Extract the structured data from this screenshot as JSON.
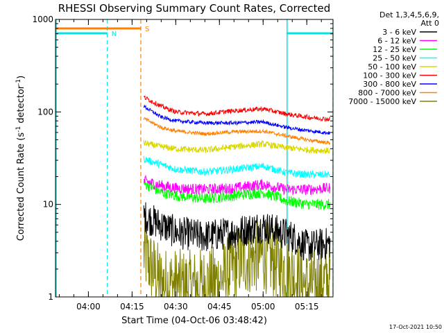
{
  "chart_data": {
    "type": "line",
    "title": "RHESSI Observing Summary Count Rates, Corrected",
    "xlabel": "Start Time (04-Oct-06 03:48:42)",
    "ylabel_main": "Corrected Count Rate (s",
    "ylabel_sup1": "-1",
    "ylabel_mid": " detector",
    "ylabel_sup2": "-1",
    "ylabel_end": ")",
    "yscale": "log",
    "ylim": [
      1,
      1000
    ],
    "xlim": [
      "03:48:42",
      "05:24:00"
    ],
    "x_ticks": [
      "04:00",
      "04:15",
      "04:30",
      "04:45",
      "05:00",
      "05:15"
    ],
    "y_ticks": [
      "1",
      "10",
      "100",
      "1000"
    ],
    "legend_header": [
      "Det 1,3,4,5,6,9,",
      "Att 0"
    ],
    "legend_position": "right",
    "timestamp": "17-Oct-2021 10:50",
    "flags": [
      {
        "label": "N",
        "color": "#00e5e5",
        "intervals": [
          [
            "03:48:42",
            "04:06:30"
          ],
          [
            "05:08:00",
            "05:24:00"
          ]
        ]
      },
      {
        "label": "S",
        "color": "#ff8000",
        "intervals": [
          [
            "03:48:42",
            "04:18:00"
          ]
        ]
      }
    ],
    "event_lines": [
      {
        "color": "#00e5e5",
        "times": [
          "04:06:30",
          "05:24:00"
        ]
      },
      {
        "color": "#ff8000",
        "times": [
          "04:18:00"
        ]
      }
    ],
    "solid_markers": [
      {
        "color": "#00e5e5",
        "times": [
          "03:48:42",
          "05:08:00"
        ]
      }
    ],
    "series": [
      {
        "name": "3 - 6 keV",
        "color": "#000000",
        "noise": 0.18,
        "points": [
          [
            "04:19:00",
            7.5
          ],
          [
            "04:25:00",
            6.0
          ],
          [
            "04:30:00",
            5.0
          ],
          [
            "04:40:00",
            4.5
          ],
          [
            "04:50:00",
            5.0
          ],
          [
            "05:00:00",
            5.8
          ],
          [
            "05:10:00",
            4.5
          ],
          [
            "05:15:00",
            3.5
          ],
          [
            "05:23:00",
            3.8
          ]
        ]
      },
      {
        "name": "6 - 12 keV",
        "color": "#ff00ff",
        "noise": 0.06,
        "points": [
          [
            "04:19:00",
            18
          ],
          [
            "04:25:00",
            16
          ],
          [
            "04:30:00",
            15
          ],
          [
            "04:40:00",
            14.5
          ],
          [
            "04:50:00",
            15
          ],
          [
            "05:00:00",
            16.5
          ],
          [
            "05:08:00",
            14.5
          ],
          [
            "05:15:00",
            14.5
          ],
          [
            "05:23:00",
            15
          ]
        ]
      },
      {
        "name": "12 - 25 keV",
        "color": "#00ff00",
        "noise": 0.06,
        "points": [
          [
            "04:19:00",
            17
          ],
          [
            "04:25:00",
            13.5
          ],
          [
            "04:30:00",
            12.5
          ],
          [
            "04:40:00",
            11.5
          ],
          [
            "04:50:00",
            12.5
          ],
          [
            "05:00:00",
            13.5
          ],
          [
            "05:08:00",
            11
          ],
          [
            "05:15:00",
            10
          ],
          [
            "05:23:00",
            10
          ]
        ]
      },
      {
        "name": "25 - 50 keV",
        "color": "#00ffff",
        "noise": 0.04,
        "points": [
          [
            "04:19:00",
            31
          ],
          [
            "04:25:00",
            27
          ],
          [
            "04:30:00",
            24
          ],
          [
            "04:40:00",
            22.5
          ],
          [
            "04:50:00",
            24
          ],
          [
            "05:00:00",
            26
          ],
          [
            "05:08:00",
            22
          ],
          [
            "05:15:00",
            21
          ],
          [
            "05:23:00",
            21
          ]
        ]
      },
      {
        "name": "50 - 100 keV",
        "color": "#d8d800",
        "noise": 0.035,
        "points": [
          [
            "04:19:00",
            46
          ],
          [
            "04:25:00",
            42
          ],
          [
            "04:30:00",
            40
          ],
          [
            "04:40:00",
            38.5
          ],
          [
            "04:50:00",
            42
          ],
          [
            "05:00:00",
            45
          ],
          [
            "05:08:00",
            41
          ],
          [
            "05:15:00",
            39
          ],
          [
            "05:23:00",
            38
          ]
        ]
      },
      {
        "name": "100 - 300 keV",
        "color": "#ff0000",
        "noise": 0.025,
        "points": [
          [
            "04:19:00",
            145
          ],
          [
            "04:25:00",
            115
          ],
          [
            "04:30:00",
            100
          ],
          [
            "04:40:00",
            95
          ],
          [
            "04:50:00",
            103
          ],
          [
            "05:00:00",
            108
          ],
          [
            "05:08:00",
            95
          ],
          [
            "05:15:00",
            88
          ],
          [
            "05:23:00",
            83
          ]
        ]
      },
      {
        "name": "300 - 800 keV",
        "color": "#0000ff",
        "noise": 0.02,
        "points": [
          [
            "04:19:00",
            115
          ],
          [
            "04:25:00",
            88
          ],
          [
            "04:30:00",
            80
          ],
          [
            "04:40:00",
            76
          ],
          [
            "04:50:00",
            76
          ],
          [
            "05:00:00",
            78
          ],
          [
            "05:08:00",
            68
          ],
          [
            "05:15:00",
            63
          ],
          [
            "05:23:00",
            59
          ]
        ]
      },
      {
        "name": "800 - 7000 keV",
        "color": "#ff8000",
        "noise": 0.02,
        "points": [
          [
            "04:19:00",
            85
          ],
          [
            "04:25:00",
            68
          ],
          [
            "04:30:00",
            62
          ],
          [
            "04:40:00",
            58
          ],
          [
            "04:50:00",
            61
          ],
          [
            "05:00:00",
            62
          ],
          [
            "05:08:00",
            55
          ],
          [
            "05:15:00",
            50
          ],
          [
            "05:23:00",
            46
          ]
        ]
      },
      {
        "name": "7000 - 15000 keV",
        "color": "#808000",
        "noise": 0.4,
        "points": [
          [
            "04:19:00",
            3.0
          ],
          [
            "04:22:00",
            2.0
          ],
          [
            "04:25:00",
            1.4
          ],
          [
            "04:35:00",
            1.3
          ],
          [
            "04:45:00",
            1.5
          ],
          [
            "04:52:00",
            2.5
          ],
          [
            "05:00:00",
            2.8
          ],
          [
            "05:08:00",
            2.0
          ],
          [
            "05:15:00",
            1.3
          ],
          [
            "05:23:00",
            1.5
          ]
        ]
      }
    ]
  }
}
